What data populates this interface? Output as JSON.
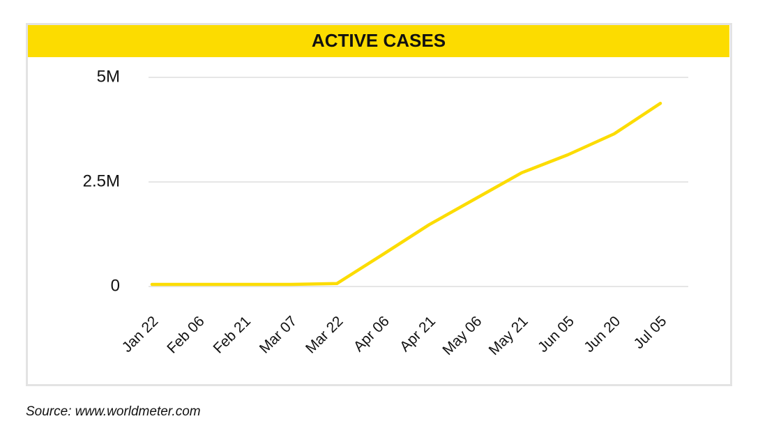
{
  "chart_data": {
    "type": "line",
    "title": "ACTIVE CASES",
    "categories": [
      "Jan 22",
      "Feb 06",
      "Feb 21",
      "Mar 07",
      "Mar 22",
      "Apr 06",
      "Apr 21",
      "May 06",
      "May 21",
      "Jun 05",
      "Jun 20",
      "Jul 05"
    ],
    "values": [
      50000,
      50000,
      50000,
      50000,
      70000,
      770000,
      1480000,
      2100000,
      2720000,
      3150000,
      3650000,
      4380000
    ],
    "color": "#fcdc00",
    "ylim": [
      0,
      5000000
    ],
    "yticks": [
      0,
      {
        "value": 2500000,
        "label": "2.5M"
      },
      {
        "value": 5000000,
        "label": "5M"
      }
    ],
    "grid": true,
    "source": "Source: www.worldmeter.com"
  }
}
